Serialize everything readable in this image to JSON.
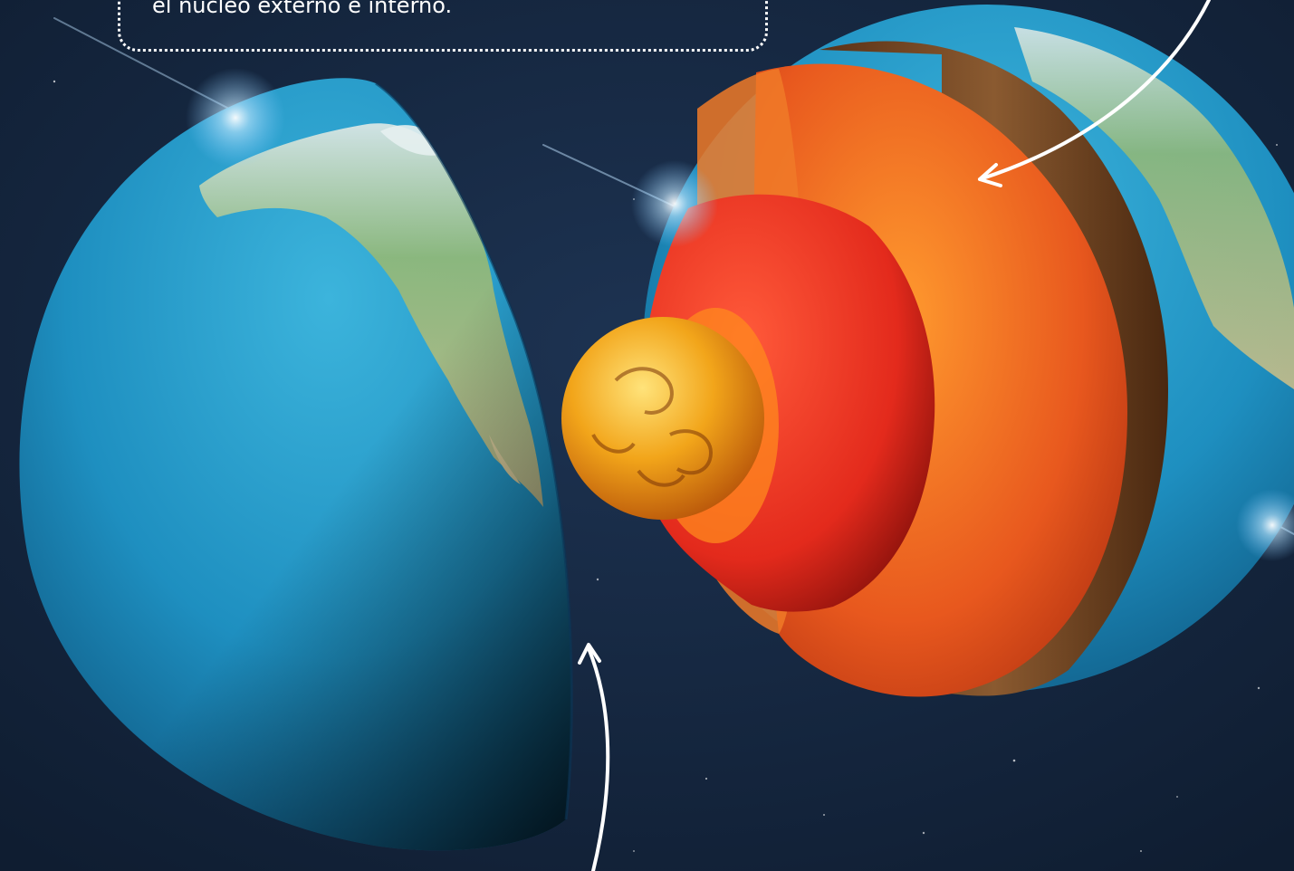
{
  "caption": {
    "text": "el núcleo externo e interno."
  },
  "colors": {
    "space_background": "#14253d",
    "ocean": "#1e8fc0",
    "land": "#8fb87a",
    "crust": "#6b3e1e",
    "mantle": "#e8581e",
    "outer_core": "#e32a1c",
    "inner_core": "#f2a51a",
    "annotation_lines": "#ffffff"
  },
  "icons": {
    "earth_left_half": "earth-hemisphere-icon",
    "earth_cutaway": "earth-layers-cutaway-icon",
    "arrow_to_mantle": "curved-arrow-icon",
    "arrow_to_surface": "curved-arrow-icon"
  }
}
